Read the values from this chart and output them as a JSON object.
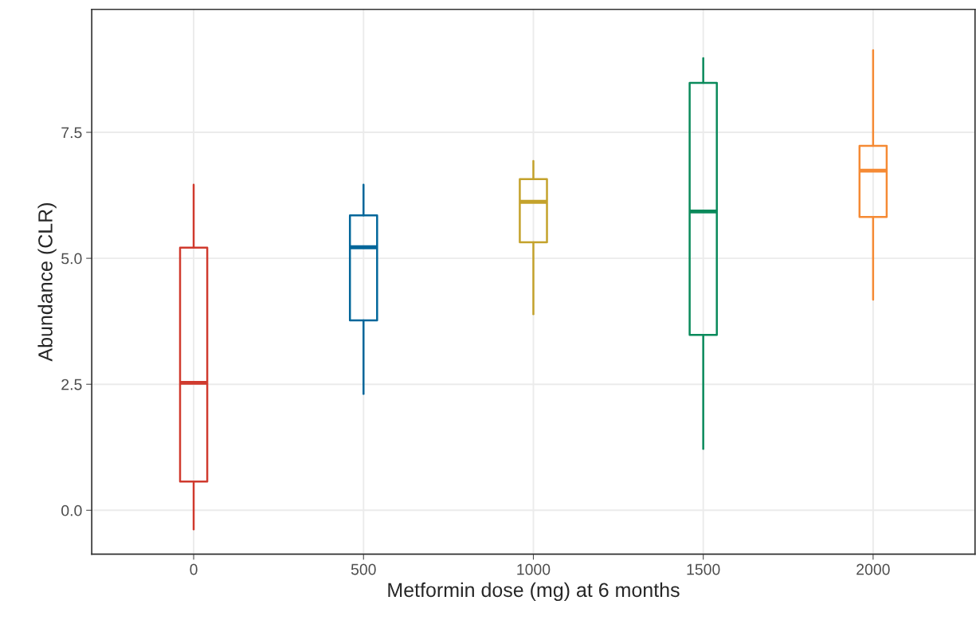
{
  "chart_data": {
    "type": "box",
    "xlabel": "Metformin dose (mg) at 6 months",
    "ylabel": "Abundance (CLR)",
    "categories": [
      "0",
      "500",
      "1000",
      "1500",
      "2000"
    ],
    "colors": [
      "#d03a2e",
      "#00669a",
      "#c4a22b",
      "#0a8a5b",
      "#f58a34"
    ],
    "boxes": [
      {
        "low": -0.38,
        "q1": 0.57,
        "median": 2.53,
        "q3": 5.21,
        "high": 6.46
      },
      {
        "low": 2.31,
        "q1": 3.77,
        "median": 5.22,
        "q3": 5.85,
        "high": 6.46
      },
      {
        "low": 3.89,
        "q1": 5.32,
        "median": 6.12,
        "q3": 6.57,
        "high": 6.93
      },
      {
        "low": 1.22,
        "q1": 3.48,
        "median": 5.93,
        "q3": 8.48,
        "high": 8.97
      },
      {
        "low": 4.18,
        "q1": 5.82,
        "median": 6.74,
        "q3": 7.23,
        "high": 9.13
      }
    ],
    "ylim": [
      -0.87,
      9.94
    ],
    "yticks": [
      {
        "value": 0,
        "label": "0.0"
      },
      {
        "value": 2.5,
        "label": "2.5"
      },
      {
        "value": 5,
        "label": "5.0"
      },
      {
        "value": 7.5,
        "label": "7.5"
      }
    ],
    "grid": true
  }
}
